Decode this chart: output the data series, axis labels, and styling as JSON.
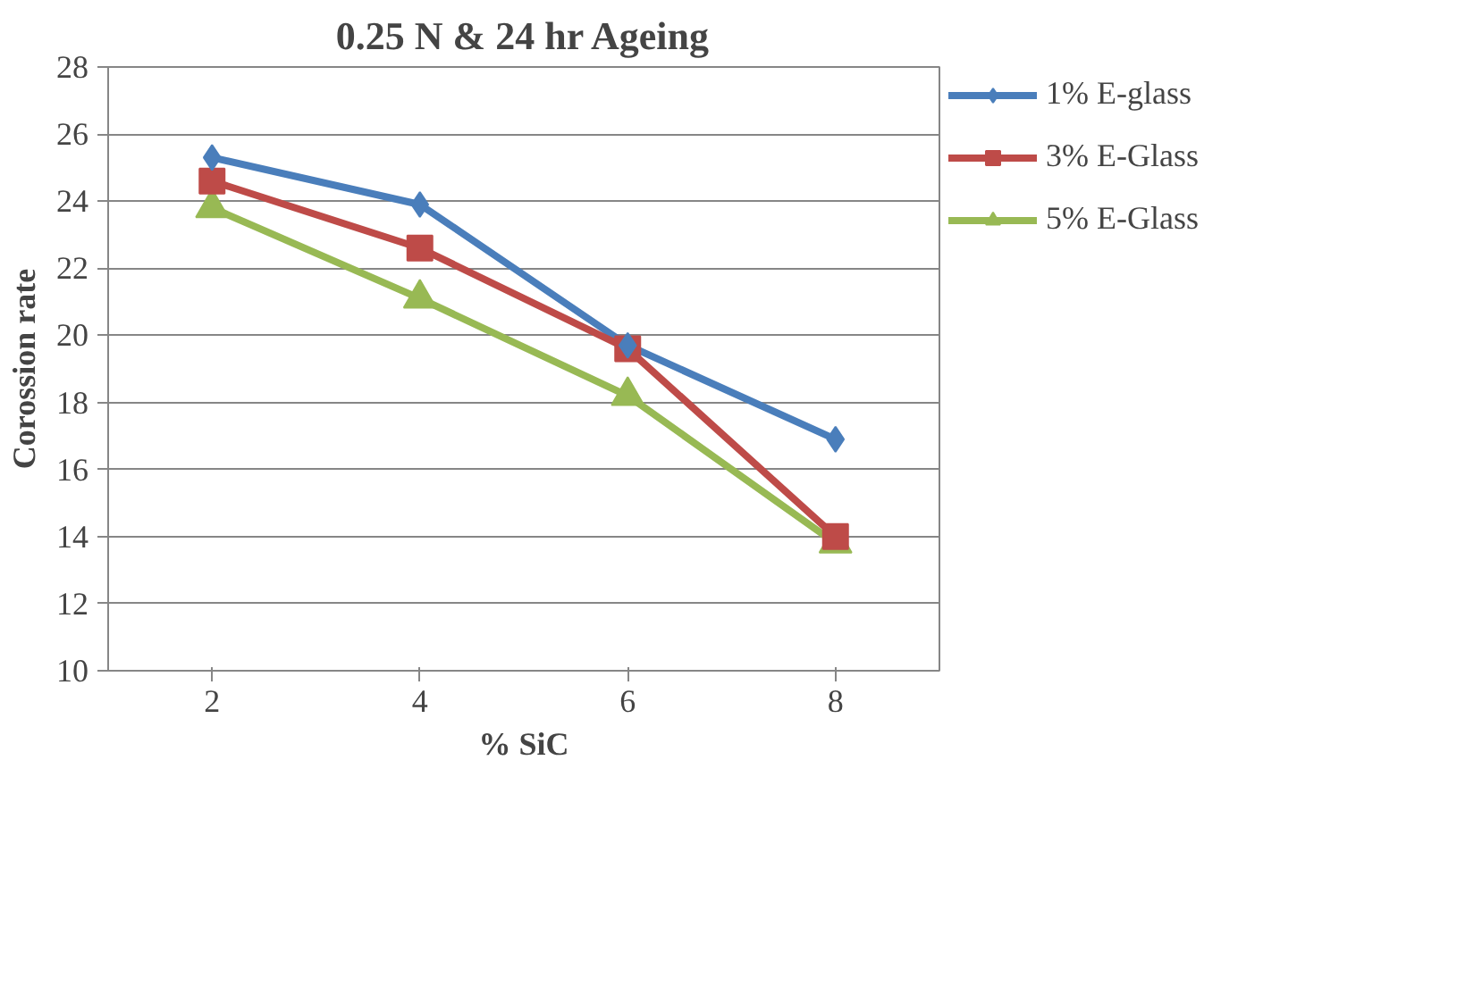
{
  "chart_data": {
    "type": "line",
    "title": "0.25 N & 24 hr Ageing",
    "xlabel": "% SiC",
    "ylabel": "Corossion rate",
    "categories": [
      "2",
      "4",
      "6",
      "8"
    ],
    "ylim": [
      10,
      28
    ],
    "yticks": [
      10,
      12,
      14,
      16,
      18,
      20,
      22,
      24,
      26,
      28
    ],
    "grid": "y",
    "legend": "right",
    "series": [
      {
        "name": "1% E-glass",
        "color": "#4a7ebb",
        "marker": "diamond",
        "values": [
          25.3,
          23.9,
          19.7,
          16.9
        ]
      },
      {
        "name": "3% E-Glass",
        "color": "#be4b48",
        "marker": "square",
        "values": [
          24.6,
          22.6,
          19.6,
          14.0
        ]
      },
      {
        "name": "5% E-Glass",
        "color": "#98b954",
        "marker": "triangle",
        "values": [
          23.8,
          21.1,
          18.2,
          13.8
        ]
      }
    ]
  }
}
